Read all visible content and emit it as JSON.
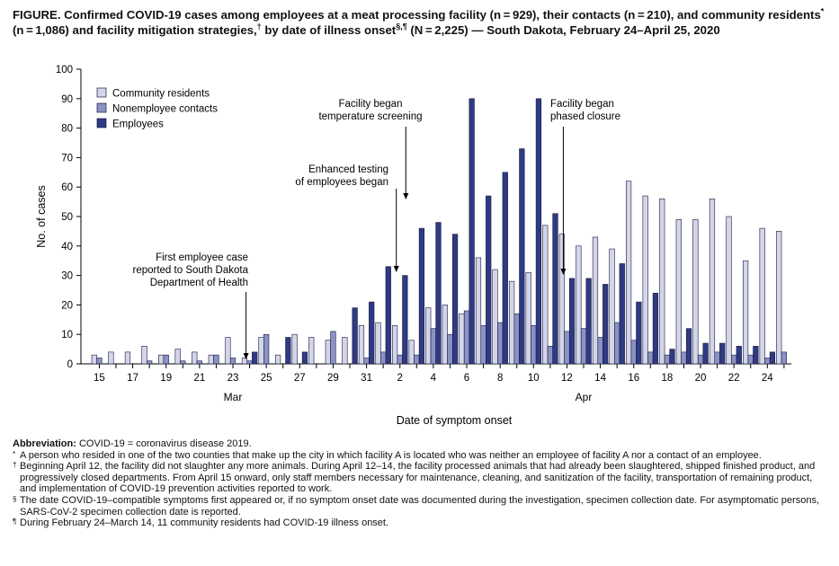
{
  "title": {
    "part1": "FIGURE. Confirmed COVID-19 cases among employees at a meat processing facility (n = 929), their contacts (n = 210), and community residents",
    "mark1": "*",
    "part2": "(n = 1,086) and facility mitigation strategies,",
    "mark2": "†",
    "part3": "by date of illness onset",
    "mark3": "§,¶",
    "part4": "(N = 2,225) — South Dakota, February 24–April 25, 2020"
  },
  "chart_data": {
    "type": "bar",
    "xlabel": "Date of symptom onset",
    "ylabel": "No. of cases",
    "ylim": [
      0,
      100
    ],
    "yticks": [
      0,
      10,
      20,
      30,
      40,
      50,
      60,
      70,
      80,
      90,
      100
    ],
    "month_labels": [
      "Mar",
      "Apr"
    ],
    "categories": [
      "Mar 15",
      "Mar 16",
      "Mar 17",
      "Mar 18",
      "Mar 19",
      "Mar 20",
      "Mar 21",
      "Mar 22",
      "Mar 23",
      "Mar 24",
      "Mar 25",
      "Mar 26",
      "Mar 27",
      "Mar 28",
      "Mar 29",
      "Mar 30",
      "Mar 31",
      "Apr 1",
      "Apr 2",
      "Apr 3",
      "Apr 4",
      "Apr 5",
      "Apr 6",
      "Apr 7",
      "Apr 8",
      "Apr 9",
      "Apr 10",
      "Apr 11",
      "Apr 12",
      "Apr 13",
      "Apr 14",
      "Apr 15",
      "Apr 16",
      "Apr 17",
      "Apr 18",
      "Apr 19",
      "Apr 20",
      "Apr 21",
      "Apr 22",
      "Apr 23",
      "Apr 24",
      "Apr 25"
    ],
    "tick_labels": [
      "15",
      "",
      "17",
      "",
      "19",
      "",
      "21",
      "",
      "23",
      "",
      "25",
      "",
      "27",
      "",
      "29",
      "",
      "31",
      "",
      "2",
      "",
      "4",
      "",
      "6",
      "",
      "8",
      "",
      "10",
      "",
      "12",
      "",
      "14",
      "",
      "16",
      "",
      "18",
      "",
      "20",
      "",
      "22",
      "",
      "24",
      ""
    ],
    "series": [
      {
        "name": "Community residents",
        "color": "#d3d5e8",
        "values": [
          3,
          4,
          4,
          6,
          3,
          5,
          4,
          3,
          9,
          2,
          9,
          3,
          10,
          9,
          8,
          9,
          13,
          14,
          13,
          8,
          19,
          20,
          17,
          36,
          32,
          28,
          31,
          47,
          44,
          40,
          43,
          39,
          62,
          57,
          56,
          49,
          49,
          56,
          50,
          35,
          46,
          45
        ]
      },
      {
        "name": "Nonemployee contacts",
        "color": "#8a93c4",
        "values": [
          2,
          0,
          0,
          1,
          3,
          1,
          1,
          3,
          2,
          1,
          10,
          0,
          0,
          0,
          11,
          0,
          2,
          4,
          3,
          3,
          12,
          10,
          18,
          13,
          14,
          17,
          13,
          6,
          11,
          12,
          9,
          14,
          8,
          4,
          3,
          4,
          3,
          4,
          3,
          3,
          2,
          4
        ]
      },
      {
        "name": "Employees",
        "color": "#2e3a82",
        "values": [
          0,
          0,
          0,
          0,
          0,
          0,
          0,
          0,
          0,
          4,
          0,
          9,
          4,
          0,
          0,
          19,
          21,
          33,
          30,
          46,
          48,
          44,
          90,
          57,
          65,
          73,
          90,
          51,
          29,
          29,
          27,
          34,
          21,
          24,
          5,
          12,
          7,
          7,
          6,
          6,
          4,
          0
        ]
      }
    ],
    "legend_position": "top-left",
    "grid": false,
    "annotations": [
      {
        "lines": [
          "First employee case",
          "reported to South Dakota",
          "Department of Health"
        ],
        "date": "Mar 24"
      },
      {
        "lines": [
          "Enhanced testing",
          "of employees began"
        ],
        "date": "Apr 2"
      },
      {
        "lines": [
          "Facility began",
          "temperature screening"
        ],
        "date": "Apr 3"
      },
      {
        "lines": [
          "Facility began",
          "phased closure"
        ],
        "date": "Apr 12"
      }
    ]
  },
  "footnotes": {
    "abbrev_lead": "Abbreviation:",
    "abbrev_text": "COVID-19 = coronavirus disease 2019.",
    "fn1_mark": "*",
    "fn1": "A person who resided in one of the two counties that make up the city in which facility A is located who was neither an employee of facility A nor a contact of an employee.",
    "fn2_mark": "†",
    "fn2": "Beginning April 12, the facility did not slaughter any more animals. During April 12–14, the facility processed animals that had already been slaughtered, shipped finished product, and progressively closed departments. From April 15 onward, only staff members necessary for maintenance, cleaning, and sanitization of the facility, transportation of remaining product, and implementation of COVID-19 prevention activities reported to work.",
    "fn3_mark": "§",
    "fn3": "The date COVID-19–compatible symptoms first appeared or, if no symptom onset date was documented during the investigation, specimen collection date. For asymptomatic persons, SARS-CoV-2 specimen collection date is reported.",
    "fn4_mark": "¶",
    "fn4": "During February 24–March 14, 11 community residents had COVID-19 illness onset."
  }
}
